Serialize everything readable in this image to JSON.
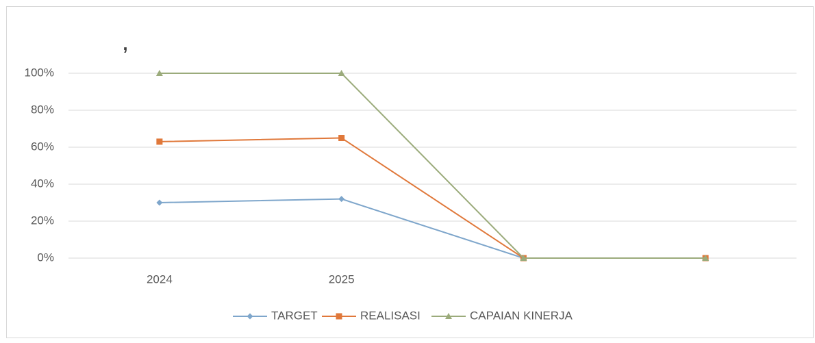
{
  "chart_data": {
    "type": "line",
    "title": ",",
    "categories": [
      "2024",
      "2025",
      null,
      null
    ],
    "series": [
      {
        "name": "TARGET",
        "color": "#7ea6cb",
        "marker": "diamond",
        "values": [
          30,
          32,
          0,
          0
        ]
      },
      {
        "name": "REALISASI",
        "color": "#e0783a",
        "marker": "square",
        "values": [
          63,
          65,
          0,
          0
        ]
      },
      {
        "name": "CAPAIAN KINERJA",
        "color": "#9bab7b",
        "marker": "triangle",
        "values": [
          100,
          100,
          0,
          0
        ]
      }
    ],
    "ylim": [
      0,
      100
    ],
    "yticks": [
      {
        "value": 0,
        "label": "0%"
      },
      {
        "value": 20,
        "label": "20%"
      },
      {
        "value": 40,
        "label": "40%"
      },
      {
        "value": 60,
        "label": "60%"
      },
      {
        "value": 80,
        "label": "80%"
      },
      {
        "value": 100,
        "label": "100%"
      }
    ],
    "grid": true,
    "legend": "bottom"
  }
}
